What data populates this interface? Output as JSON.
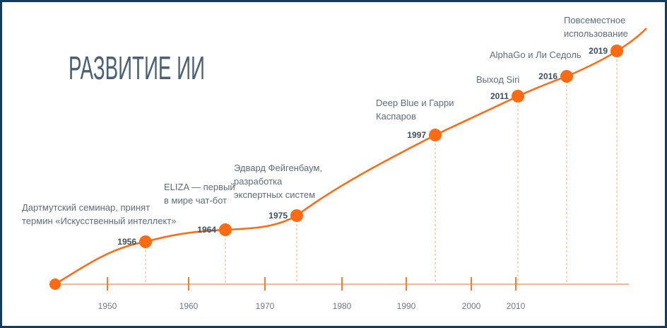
{
  "title": "РАЗВИТИЕ ИИ",
  "colors": {
    "accent": "#ff6a13",
    "axis": "#ffb68a",
    "text": "#5e6c7a",
    "title": "#4a6075",
    "border": "#143a5e"
  },
  "axis_labels": [
    "1950",
    "1960",
    "1970",
    "1980",
    "1990",
    "2000",
    "2010"
  ],
  "events": [
    {
      "year": "1956",
      "lines": [
        "Дартмутский семинар, принят",
        "термин «Искусственный интеллект»"
      ]
    },
    {
      "year": "1964",
      "lines": [
        "ELIZA — первый",
        "в мире чат-бот"
      ]
    },
    {
      "year": "1975",
      "lines": [
        "Эдвард Фейгенбаум,",
        "разработка",
        "экспертных систем"
      ]
    },
    {
      "year": "1997",
      "lines": [
        "Deep Blue и Гарри",
        "Каспаров"
      ]
    },
    {
      "year": "2011",
      "lines": [
        "Выход Siri"
      ]
    },
    {
      "year": "2016",
      "lines": [
        "AlphaGo и Ли Седоль"
      ]
    },
    {
      "year": "2019",
      "lines": [
        "Повсеместное",
        "использование"
      ]
    }
  ]
}
